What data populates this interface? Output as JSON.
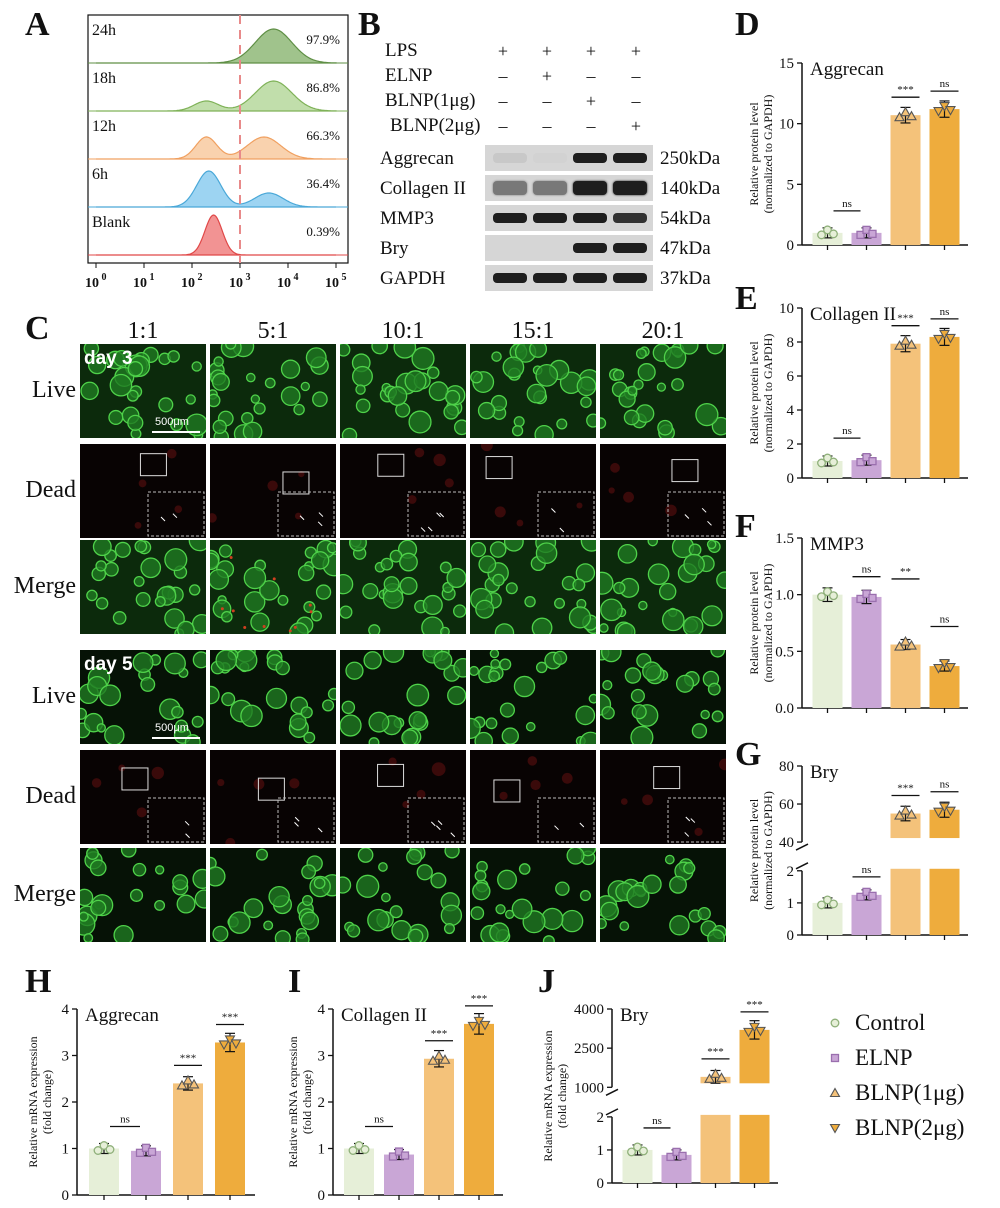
{
  "panels": {
    "A": "A",
    "B": "B",
    "C": "C",
    "D": "D",
    "E": "E",
    "F": "F",
    "G": "G",
    "H": "H",
    "I": "I",
    "J": "J"
  },
  "flow": {
    "rows": [
      {
        "label": "24h",
        "pct": "97.9%",
        "color": "#5f8f45",
        "fill": "#8fb878"
      },
      {
        "label": "18h",
        "pct": "86.8%",
        "color": "#7fb258",
        "fill": "#b6d89c"
      },
      {
        "label": "12h",
        "pct": "66.3%",
        "color": "#f0a060",
        "fill": "#f8caa0"
      },
      {
        "label": "6h",
        "pct": "36.4%",
        "color": "#4aa8d8",
        "fill": "#8cccf0"
      },
      {
        "label": "Blank",
        "pct": "0.39%",
        "color": "#e04848",
        "fill": "#f08080"
      }
    ],
    "xticks": [
      "10",
      "10",
      "10",
      "10",
      "10",
      "10"
    ],
    "xexps": [
      "0",
      "1",
      "2",
      "3",
      "4",
      "5"
    ]
  },
  "western": {
    "conditions": [
      {
        "name": "LPS",
        "signs": [
          "+",
          "+",
          "+",
          "+"
        ]
      },
      {
        "name": "ELNP",
        "signs": [
          "–",
          "+",
          "–",
          "–"
        ]
      },
      {
        "name": "BLNP(1μg)",
        "signs": [
          "–",
          "–",
          "+",
          "–"
        ]
      },
      {
        "name": "BLNP(2μg)",
        "signs": [
          "–",
          "–",
          "–",
          "+"
        ]
      }
    ],
    "bands": [
      {
        "name": "Aggrecan",
        "kda": "250kDa"
      },
      {
        "name": "Collagen II",
        "kda": "140kDa"
      },
      {
        "name": "MMP3",
        "kda": "54kDa"
      },
      {
        "name": "Bry",
        "kda": "47kDa"
      },
      {
        "name": "GAPDH",
        "kda": "37kDa"
      }
    ]
  },
  "micro": {
    "columns": [
      "1:1",
      "5:1",
      "10:1",
      "15:1",
      "20:1"
    ],
    "rows": [
      "Live",
      "Dead",
      "Merge",
      "Live",
      "Dead",
      "Merge"
    ],
    "days": [
      "day 3",
      "day 5"
    ],
    "scale": "500μm"
  },
  "legend": {
    "items": [
      {
        "name": "Control",
        "color": "#e6efd8",
        "shape": "circle"
      },
      {
        "name": "ELNP",
        "color": "#c9a6d6",
        "shape": "square"
      },
      {
        "name": "BLNP(1μg)",
        "color": "#f4c27a",
        "shape": "triangle"
      },
      {
        "name": "BLNP(2μg)",
        "color": "#eeac3d",
        "shape": "triangle-down"
      }
    ]
  },
  "chart_data": [
    {
      "id": "D",
      "type": "bar",
      "title": "Aggrecan",
      "ylabel": "Relative protein level\n(normalized to GAPDH)",
      "ylim": [
        0,
        15
      ],
      "yticks": [
        "0",
        "5",
        "10",
        "15"
      ],
      "values": [
        1.0,
        1.0,
        10.7,
        11.2
      ],
      "sig": [
        [
          "ns",
          0,
          1
        ],
        [
          "***",
          2,
          3
        ],
        [
          "ns",
          3,
          4
        ]
      ]
    },
    {
      "id": "E",
      "type": "bar",
      "title": "Collagen II",
      "ylabel": "Relative protein level\n(normalized to GAPDH)",
      "ylim": [
        0,
        10
      ],
      "yticks": [
        "0",
        "2",
        "4",
        "6",
        "8",
        "10"
      ],
      "values": [
        1.0,
        1.05,
        7.9,
        8.3
      ],
      "sig": [
        [
          "ns",
          0,
          1
        ],
        [
          "***",
          2,
          3
        ],
        [
          "ns",
          3,
          4
        ]
      ]
    },
    {
      "id": "F",
      "type": "bar",
      "title": "MMP3",
      "ylabel": "Relative protein level\n(normalized to GAPDH)",
      "ylim": [
        0,
        1.5
      ],
      "yticks": [
        "0.0",
        "0.5",
        "1.0",
        "1.5"
      ],
      "values": [
        1.0,
        0.98,
        0.56,
        0.37
      ],
      "sig": [
        [
          "ns",
          1,
          2
        ],
        [
          "**",
          2,
          3
        ],
        [
          "ns",
          3,
          4
        ]
      ]
    },
    {
      "id": "G",
      "type": "bar",
      "title": "Bry",
      "ylabel": "Relative protein level\n(normalized to GAPDH)",
      "broken": true,
      "yticks_low": [
        "0",
        "1",
        "2"
      ],
      "yticks_high": [
        "40",
        "60",
        "80"
      ],
      "values": [
        1.0,
        1.25,
        55,
        57
      ],
      "sig": [
        [
          "ns",
          1,
          2
        ],
        [
          "***",
          2,
          3
        ],
        [
          "ns",
          3,
          4
        ]
      ]
    },
    {
      "id": "H",
      "type": "bar",
      "title": "Aggrecan",
      "ylabel": "Relative mRNA expression\n(fold change)",
      "ylim": [
        0,
        4
      ],
      "yticks": [
        "0",
        "1",
        "2",
        "3",
        "4"
      ],
      "values": [
        1.0,
        0.95,
        2.4,
        3.28
      ],
      "sig": [
        [
          "ns",
          0,
          1
        ],
        [
          "***",
          2,
          3
        ],
        [
          "***",
          3,
          4
        ]
      ]
    },
    {
      "id": "I",
      "type": "bar",
      "title": "Collagen II",
      "ylabel": "Relative mRNA expression\n(fold change)",
      "ylim": [
        0,
        4
      ],
      "yticks": [
        "0",
        "1",
        "2",
        "3",
        "4"
      ],
      "values": [
        1.0,
        0.87,
        2.93,
        3.68
      ],
      "sig": [
        [
          "ns",
          0,
          1
        ],
        [
          "***",
          2,
          3
        ],
        [
          "***",
          3,
          4
        ]
      ]
    },
    {
      "id": "J",
      "type": "bar",
      "title": "Bry",
      "ylabel": "Relative mRNA expression\n(fold change)",
      "broken": true,
      "yticks_low": [
        "0",
        "1",
        "2"
      ],
      "yticks_high": [
        "1000",
        "2500",
        "4000"
      ],
      "values": [
        1.0,
        0.85,
        1400,
        3200
      ],
      "sig": [
        [
          "ns",
          0,
          1
        ],
        [
          "***",
          2,
          3
        ],
        [
          "***",
          3,
          4
        ]
      ]
    }
  ]
}
